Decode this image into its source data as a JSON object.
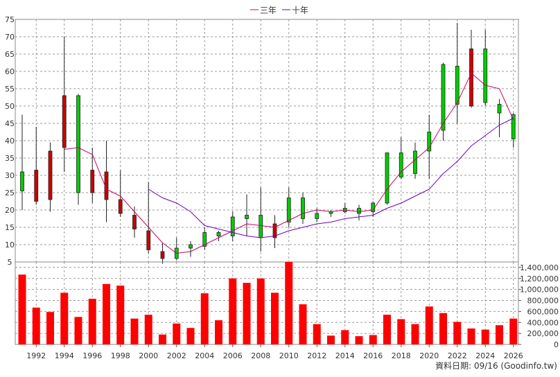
{
  "chart_data": [
    {
      "type": "candlestick",
      "ylim": [
        5,
        75
      ],
      "y_ticks": [
        5,
        10,
        15,
        20,
        25,
        30,
        35,
        40,
        45,
        50,
        55,
        60,
        65,
        70,
        75
      ],
      "x_tick_labels": [
        "1992",
        "1994",
        "1996",
        "1998",
        "2000",
        "2002",
        "2004",
        "2006",
        "2008",
        "2010",
        "2012",
        "2014",
        "2016",
        "2018",
        "2020",
        "2022",
        "2024",
        "2026"
      ],
      "grid": true,
      "legend_position": "top-center",
      "series": [
        {
          "kind": "ohlc",
          "up_color": "#00cc00",
          "down_color": "#cc0000",
          "points": [
            {
              "year": 1991,
              "open": 25.5,
              "high": 47.5,
              "low": 20,
              "close": 31
            },
            {
              "year": 1992,
              "open": 31.5,
              "high": 44,
              "low": 21.5,
              "close": 22.5
            },
            {
              "year": 1993,
              "open": 37,
              "high": 39.5,
              "low": 19.5,
              "close": 23
            },
            {
              "year": 1994,
              "open": 53,
              "high": 70,
              "low": 31,
              "close": 38
            },
            {
              "year": 1995,
              "open": 25,
              "high": 53.5,
              "low": 21.5,
              "close": 53
            },
            {
              "year": 1996,
              "open": 31.5,
              "high": 38,
              "low": 22,
              "close": 25
            },
            {
              "year": 1997,
              "open": 31,
              "high": 40,
              "low": 16.5,
              "close": 23
            },
            {
              "year": 1998,
              "open": 23,
              "high": 31.5,
              "low": 18,
              "close": 19
            },
            {
              "year": 1999,
              "open": 18.5,
              "high": 21,
              "low": 12,
              "close": 14.5
            },
            {
              "year": 2000,
              "open": 14,
              "high": 28,
              "low": 7.5,
              "close": 8.5
            },
            {
              "year": 2001,
              "open": 8,
              "high": 10.5,
              "low": 4.5,
              "close": 6
            },
            {
              "year": 2002,
              "open": 6,
              "high": 12,
              "low": 5.5,
              "close": 9
            },
            {
              "year": 2003,
              "open": 9,
              "high": 11,
              "low": 6.5,
              "close": 10
            },
            {
              "year": 2004,
              "open": 9.5,
              "high": 15,
              "low": 8.5,
              "close": 13.5
            },
            {
              "year": 2005,
              "open": 12.5,
              "high": 14,
              "low": 11,
              "close": 13.5
            },
            {
              "year": 2006,
              "open": 12.5,
              "high": 19.5,
              "low": 11,
              "close": 18
            },
            {
              "year": 2007,
              "open": 17.5,
              "high": 24.5,
              "low": 12.5,
              "close": 18.5
            },
            {
              "year": 2008,
              "open": 12,
              "high": 26.5,
              "low": 8,
              "close": 18.5
            },
            {
              "year": 2009,
              "open": 16,
              "high": 18.5,
              "low": 9,
              "close": 12
            },
            {
              "year": 2010,
              "open": 16.5,
              "high": 26.5,
              "low": 15,
              "close": 23.5
            },
            {
              "year": 2011,
              "open": 17.5,
              "high": 25,
              "low": 16,
              "close": 23.5
            },
            {
              "year": 2012,
              "open": 17.5,
              "high": 20.5,
              "low": 16.5,
              "close": 19
            },
            {
              "year": 2013,
              "open": 19,
              "high": 20,
              "low": 18,
              "close": 19.5
            },
            {
              "year": 2014,
              "open": 19.5,
              "high": 22,
              "low": 19,
              "close": 20.5
            },
            {
              "year": 2015,
              "open": 19,
              "high": 21.5,
              "low": 17,
              "close": 20.5
            },
            {
              "year": 2016,
              "open": 19.5,
              "high": 22.5,
              "low": 18,
              "close": 22
            },
            {
              "year": 2017,
              "open": 22,
              "high": 36.5,
              "low": 21.5,
              "close": 36.5
            },
            {
              "year": 2018,
              "open": 29.5,
              "high": 41,
              "low": 29,
              "close": 36.5
            },
            {
              "year": 2019,
              "open": 30.5,
              "high": 39.5,
              "low": 29,
              "close": 37
            },
            {
              "year": 2020,
              "open": 37,
              "high": 47.5,
              "low": 29,
              "close": 42.5
            },
            {
              "year": 2021,
              "open": 43,
              "high": 62.5,
              "low": 40,
              "close": 62
            },
            {
              "year": 2022,
              "open": 50.5,
              "high": 74,
              "low": 45,
              "close": 61.5
            },
            {
              "year": 2023,
              "open": 66.5,
              "high": 72,
              "low": 49.5,
              "close": 50
            },
            {
              "year": 2024,
              "open": 51,
              "high": 72,
              "low": 50,
              "close": 66.5
            },
            {
              "year": 2025,
              "open": 48,
              "high": 52,
              "low": 41,
              "close": 50.5
            },
            {
              "year": 2026,
              "open": 40.5,
              "high": 48,
              "low": 38,
              "close": 47.5
            }
          ]
        },
        {
          "name": "三年",
          "kind": "line",
          "color": "#cc0066",
          "points": [
            [
              1994,
              37.5
            ],
            [
              1995,
              38
            ],
            [
              1996,
              36
            ],
            [
              1997,
              26
            ],
            [
              1998,
              24
            ],
            [
              1999,
              19.5
            ],
            [
              2000,
              15
            ],
            [
              2001,
              10.5
            ],
            [
              2002,
              7.5
            ],
            [
              2003,
              8
            ],
            [
              2004,
              10
            ],
            [
              2005,
              12
            ],
            [
              2006,
              14
            ],
            [
              2007,
              16
            ],
            [
              2008,
              15.5
            ],
            [
              2009,
              15
            ],
            [
              2010,
              17
            ],
            [
              2011,
              19
            ],
            [
              2012,
              20
            ],
            [
              2013,
              19.5
            ],
            [
              2014,
              20
            ],
            [
              2015,
              19.5
            ],
            [
              2016,
              20
            ],
            [
              2017,
              26
            ],
            [
              2018,
              31
            ],
            [
              2019,
              34.5
            ],
            [
              2020,
              38
            ],
            [
              2021,
              45
            ],
            [
              2022,
              51
            ],
            [
              2023,
              59.5
            ],
            [
              2024,
              56
            ],
            [
              2025,
              55
            ],
            [
              2026,
              46
            ]
          ]
        },
        {
          "name": "十年",
          "kind": "line",
          "color": "#6600cc",
          "points": [
            [
              2000,
              26
            ],
            [
              2001,
              23.5
            ],
            [
              2002,
              22
            ],
            [
              2003,
              19.5
            ],
            [
              2004,
              15.5
            ],
            [
              2005,
              14.5
            ],
            [
              2006,
              13.5
            ],
            [
              2007,
              12.5
            ],
            [
              2008,
              12
            ],
            [
              2009,
              12.5
            ],
            [
              2010,
              14
            ],
            [
              2011,
              15
            ],
            [
              2012,
              16
            ],
            [
              2013,
              16.5
            ],
            [
              2014,
              17.5
            ],
            [
              2015,
              18
            ],
            [
              2016,
              18.5
            ],
            [
              2017,
              20.5
            ],
            [
              2018,
              22
            ],
            [
              2019,
              24
            ],
            [
              2020,
              26
            ],
            [
              2021,
              30.5
            ],
            [
              2022,
              34
            ],
            [
              2023,
              38.5
            ],
            [
              2024,
              41.5
            ],
            [
              2025,
              44.5
            ],
            [
              2026,
              46.5
            ]
          ]
        }
      ]
    },
    {
      "type": "bar",
      "ylim": [
        0,
        1500000
      ],
      "y_tick_labels": [
        "0",
        "200,000",
        "400,000",
        "600,000",
        "800,000",
        "1,000,000",
        "1,200,000",
        "1,400,000"
      ],
      "y_ticks": [
        0,
        200000,
        400000,
        600000,
        800000,
        1000000,
        1200000,
        1400000
      ],
      "bar_color": "#ff0000",
      "x": [
        1991,
        1992,
        1993,
        1994,
        1995,
        1996,
        1997,
        1998,
        1999,
        2000,
        2001,
        2002,
        2003,
        2004,
        2005,
        2006,
        2007,
        2008,
        2009,
        2010,
        2011,
        2012,
        2013,
        2014,
        2015,
        2016,
        2017,
        2018,
        2019,
        2020,
        2021,
        2022,
        2023,
        2024,
        2025,
        2026
      ],
      "values": [
        1270000,
        670000,
        590000,
        940000,
        500000,
        830000,
        1100000,
        1070000,
        470000,
        540000,
        180000,
        380000,
        300000,
        930000,
        440000,
        1200000,
        1120000,
        1200000,
        940000,
        1500000,
        730000,
        370000,
        160000,
        260000,
        150000,
        170000,
        540000,
        460000,
        370000,
        690000,
        570000,
        410000,
        290000,
        270000,
        350000,
        470000
      ]
    }
  ],
  "legend": {
    "items": [
      {
        "label": "三年",
        "color": "#cc0066"
      },
      {
        "label": "十年",
        "color": "#6600cc"
      }
    ]
  },
  "footer": {
    "source_text": "資料日期: 09/16 (Goodinfo.tw)"
  }
}
